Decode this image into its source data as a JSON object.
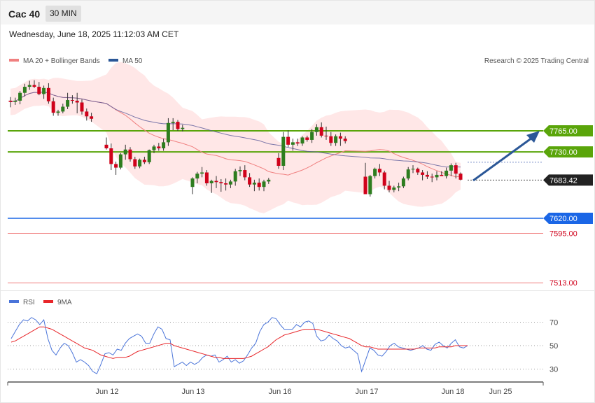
{
  "header": {
    "instrument": "Cac 40",
    "timeframe": "30 MIN"
  },
  "timestamp": "Wednesday, June 18, 2025 11:12:03 AM CET",
  "legend": {
    "ma20": "MA 20 + Bollinger Bands",
    "ma50": "MA 50",
    "credit": "Research © 2025 Trading Central"
  },
  "rsi_legend": {
    "rsi": "RSI",
    "ma9": "9MA"
  },
  "colors": {
    "bullish": "#2e7d1f",
    "bearish": "#d0021b",
    "support": "#1a66e6",
    "resistance": "#5aa50a",
    "target": "#2b5797",
    "bands": "#ffe3e3",
    "ma20": "#f08080",
    "ma50": "#5a5a9a",
    "rsi": "#4a74d9",
    "rsi_ma": "#e8262a"
  },
  "chart_data": [
    {
      "type": "candlestick",
      "x_labels": [
        "Jun 12",
        "Jun 13",
        "Jun 16",
        "Jun 17",
        "Jun 18",
        "Jun 25"
      ],
      "ylim": [
        7500,
        7850
      ],
      "current_price": 7683.42,
      "levels": [
        {
          "value": 7765.0,
          "label": "7765.00",
          "kind": "resistance"
        },
        {
          "value": 7730.0,
          "label": "7730.00",
          "kind": "resistance"
        },
        {
          "value": 7683.42,
          "label": "7683.42",
          "kind": "current"
        },
        {
          "value": 7620.0,
          "label": "7620.00",
          "kind": "support"
        },
        {
          "value": 7595.0,
          "label": "7595.00",
          "kind": "support-text"
        },
        {
          "value": 7513.0,
          "label": "7513.00",
          "kind": "support-text"
        }
      ],
      "candles": [
        [
          7815,
          7821,
          7804,
          7813
        ],
        [
          7813,
          7820,
          7808,
          7815
        ],
        [
          7815,
          7831,
          7809,
          7828
        ],
        [
          7828,
          7843,
          7822,
          7838
        ],
        [
          7838,
          7848,
          7833,
          7841
        ],
        [
          7841,
          7849,
          7836,
          7838
        ],
        [
          7838,
          7846,
          7824,
          7826
        ],
        [
          7826,
          7840,
          7818,
          7836
        ],
        [
          7836,
          7844,
          7810,
          7814
        ],
        [
          7814,
          7820,
          7790,
          7795
        ],
        [
          7795,
          7800,
          7790,
          7797
        ],
        [
          7797,
          7810,
          7794,
          7805
        ],
        [
          7805,
          7828,
          7801,
          7816
        ],
        [
          7816,
          7824,
          7810,
          7815
        ],
        [
          7815,
          7828,
          7794,
          7812
        ],
        [
          7812,
          7817,
          7792,
          7797
        ],
        [
          7797,
          7802,
          7782,
          7789
        ],
        [
          7789,
          7795,
          7780,
          7785
        ],
        [
          7742,
          7754,
          7734,
          7736
        ],
        [
          7736,
          7744,
          7700,
          7710
        ],
        [
          7710,
          7714,
          7692,
          7704
        ],
        [
          7704,
          7728,
          7701,
          7726
        ],
        [
          7726,
          7742,
          7717,
          7734
        ],
        [
          7734,
          7738,
          7714,
          7718
        ],
        [
          7718,
          7722,
          7702,
          7706
        ],
        [
          7706,
          7719,
          7703,
          7717
        ],
        [
          7717,
          7722,
          7710,
          7713
        ],
        [
          7713,
          7734,
          7710,
          7733
        ],
        [
          7733,
          7742,
          7728,
          7739
        ],
        [
          7739,
          7745,
          7732,
          7736
        ],
        [
          7736,
          7752,
          7732,
          7746
        ],
        [
          7746,
          7786,
          7740,
          7778
        ],
        [
          7778,
          7786,
          7766,
          7780
        ],
        [
          7780,
          7783,
          7765,
          7768
        ],
        [
          7768,
          7775,
          7764,
          7770
        ],
        [
          7672,
          7688,
          7660,
          7686
        ],
        [
          7686,
          7697,
          7678,
          7694
        ],
        [
          7694,
          7705,
          7688,
          7696
        ],
        [
          7696,
          7700,
          7674,
          7678
        ],
        [
          7678,
          7684,
          7662,
          7682
        ],
        [
          7682,
          7690,
          7670,
          7680
        ],
        [
          7680,
          7685,
          7664,
          7678
        ],
        [
          7678,
          7686,
          7666,
          7676
        ],
        [
          7676,
          7684,
          7670,
          7681
        ],
        [
          7681,
          7702,
          7674,
          7698
        ],
        [
          7698,
          7706,
          7690,
          7700
        ],
        [
          7700,
          7708,
          7683,
          7688
        ],
        [
          7688,
          7695,
          7672,
          7676
        ],
        [
          7676,
          7684,
          7665,
          7679
        ],
        [
          7679,
          7686,
          7666,
          7672
        ],
        [
          7672,
          7684,
          7665,
          7681
        ],
        [
          7681,
          7687,
          7677,
          7684
        ],
        [
          7720,
          7728,
          7702,
          7707
        ],
        [
          7707,
          7763,
          7700,
          7755
        ],
        [
          7755,
          7766,
          7738,
          7742
        ],
        [
          7742,
          7752,
          7732,
          7746
        ],
        [
          7746,
          7752,
          7740,
          7744
        ],
        [
          7744,
          7756,
          7740,
          7754
        ],
        [
          7754,
          7757,
          7747,
          7750
        ],
        [
          7750,
          7768,
          7745,
          7763
        ],
        [
          7763,
          7776,
          7757,
          7771
        ],
        [
          7771,
          7779,
          7754,
          7757
        ],
        [
          7757,
          7772,
          7750,
          7756
        ],
        [
          7756,
          7763,
          7740,
          7745
        ],
        [
          7745,
          7759,
          7740,
          7756
        ],
        [
          7756,
          7762,
          7740,
          7752
        ],
        [
          7752,
          7756,
          7744,
          7748
        ],
        [
          7689,
          7712,
          7660,
          7660
        ],
        [
          7660,
          7692,
          7656,
          7690
        ],
        [
          7690,
          7704,
          7686,
          7702
        ],
        [
          7702,
          7710,
          7690,
          7696
        ],
        [
          7696,
          7699,
          7668,
          7674
        ],
        [
          7674,
          7682,
          7663,
          7667
        ],
        [
          7667,
          7674,
          7663,
          7671
        ],
        [
          7671,
          7679,
          7665,
          7673
        ],
        [
          7673,
          7689,
          7670,
          7686
        ],
        [
          7686,
          7705,
          7683,
          7701
        ],
        [
          7701,
          7708,
          7695,
          7702
        ],
        [
          7702,
          7704,
          7692,
          7696
        ],
        [
          7696,
          7700,
          7683,
          7692
        ],
        [
          7692,
          7698,
          7685,
          7689
        ],
        [
          7689,
          7694,
          7680,
          7688
        ],
        [
          7688,
          7698,
          7683,
          7692
        ],
        [
          7692,
          7698,
          7690,
          7690
        ],
        [
          7690,
          7704,
          7686,
          7699
        ],
        [
          7699,
          7711,
          7690,
          7708
        ],
        [
          7708,
          7712,
          7686,
          7694
        ],
        [
          7694,
          7696,
          7683,
          7684
        ]
      ]
    },
    {
      "type": "line",
      "name": "RSI",
      "ylim": [
        20,
        80
      ],
      "y_ticks": [
        70,
        50,
        30
      ],
      "x_labels": [
        "Jun 12",
        "Jun 13",
        "Jun 16",
        "Jun 17",
        "Jun 18",
        "Jun 25"
      ],
      "rsi": [
        56,
        62,
        68,
        72,
        71,
        74,
        72,
        68,
        72,
        56,
        46,
        42,
        48,
        52,
        50,
        44,
        36,
        38,
        36,
        33,
        28,
        26,
        34,
        43,
        44,
        42,
        47,
        46,
        52,
        56,
        58,
        60,
        58,
        52,
        52,
        60,
        66,
        64,
        56,
        55,
        32,
        34,
        36,
        33,
        36,
        34,
        36,
        40,
        42,
        41,
        42,
        36,
        38,
        41,
        36,
        38,
        35,
        37,
        42,
        48,
        52,
        62,
        68,
        70,
        74,
        73,
        68,
        64,
        64,
        64,
        68,
        66,
        70,
        71,
        69,
        58,
        54,
        55,
        59,
        56,
        54,
        50,
        48,
        49,
        46,
        43,
        28,
        38,
        48,
        46,
        42,
        41,
        45,
        50,
        52,
        49,
        48,
        47,
        46,
        47,
        48,
        50,
        47,
        46,
        51,
        53,
        50,
        48,
        52,
        55,
        49,
        48,
        50
      ],
      "rsi_ma": [
        53,
        54,
        56,
        58,
        60,
        62,
        64,
        66,
        66,
        65,
        64,
        62,
        60,
        58,
        56,
        54,
        52,
        50,
        48,
        47,
        46,
        44,
        42,
        41,
        40,
        39,
        40,
        40,
        40,
        41,
        43,
        45,
        46,
        47,
        48,
        49,
        50,
        51,
        52,
        52,
        50,
        49,
        48,
        47,
        46,
        45,
        44,
        43,
        42,
        41,
        40,
        40,
        39,
        39,
        39,
        39,
        39,
        39,
        40,
        41,
        43,
        45,
        47,
        49,
        52,
        55,
        57,
        59,
        60,
        61,
        62,
        63,
        64,
        64,
        64,
        64,
        63,
        62,
        61,
        60,
        59,
        58,
        57,
        56,
        54,
        52,
        50,
        49,
        49,
        48,
        47,
        47,
        47,
        47,
        47,
        47,
        47,
        47,
        47,
        47,
        48,
        48,
        48,
        48,
        48,
        49,
        49,
        49,
        49,
        50,
        50,
        50,
        50
      ]
    }
  ]
}
